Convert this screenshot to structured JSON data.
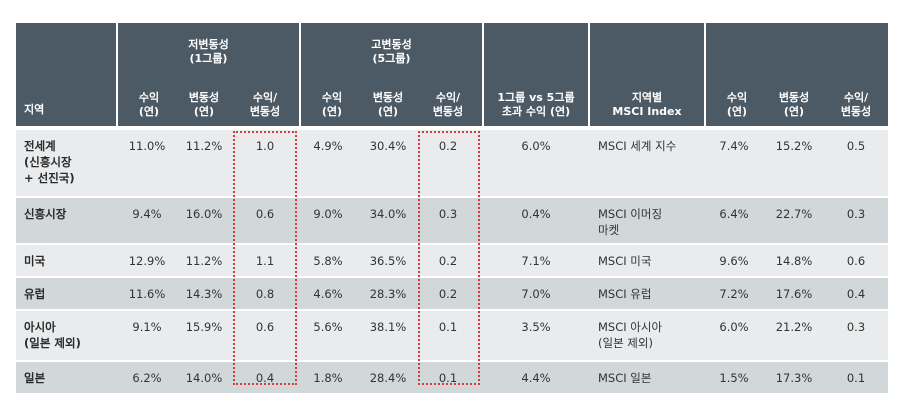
{
  "header": {
    "region": "지역",
    "low_group": "저변동성\n(1그룹)",
    "high_group": "고변동성\n(5그룹)",
    "return": "수익\n(연)",
    "volatility": "변동성\n(연)",
    "ratio": "수익/\n변동성",
    "excess": "1그룹 vs 5그룹\n초과 수익 (연)",
    "msci_region": "지역별\nMSCI Index"
  },
  "rows": [
    {
      "region": "전세계\n(신흥시장\n+ 선진국)",
      "low_ret": "11.0%",
      "low_vol": "11.2%",
      "low_ratio": "1.0",
      "high_ret": "4.9%",
      "high_vol": "30.4%",
      "high_ratio": "0.2",
      "excess": "6.0%",
      "msci": "MSCI 세계 지수",
      "m_ret": "7.4%",
      "m_vol": "15.2%",
      "m_ratio": "0.5"
    },
    {
      "region": "신흥시장",
      "low_ret": "9.4%",
      "low_vol": "16.0%",
      "low_ratio": "0.6",
      "high_ret": "9.0%",
      "high_vol": "34.0%",
      "high_ratio": "0.3",
      "excess": "0.4%",
      "msci": "MSCI 이머징\n마켓",
      "m_ret": "6.4%",
      "m_vol": "22.7%",
      "m_ratio": "0.3"
    },
    {
      "region": "미국",
      "low_ret": "12.9%",
      "low_vol": "11.2%",
      "low_ratio": "1.1",
      "high_ret": "5.8%",
      "high_vol": "36.5%",
      "high_ratio": "0.2",
      "excess": "7.1%",
      "msci": "MSCI 미국",
      "m_ret": "9.6%",
      "m_vol": "14.8%",
      "m_ratio": "0.6"
    },
    {
      "region": "유럽",
      "low_ret": "11.6%",
      "low_vol": "14.3%",
      "low_ratio": "0.8",
      "high_ret": "4.6%",
      "high_vol": "28.3%",
      "high_ratio": "0.2",
      "excess": "7.0%",
      "msci": "MSCI 유럽",
      "m_ret": "7.2%",
      "m_vol": "17.6%",
      "m_ratio": "0.4"
    },
    {
      "region": "아시아\n(일본 제외)",
      "low_ret": "9.1%",
      "low_vol": "15.9%",
      "low_ratio": "0.6",
      "high_ret": "5.6%",
      "high_vol": "38.1%",
      "high_ratio": "0.1",
      "excess": "3.5%",
      "msci": "MSCI 아시아\n(일본 제외)",
      "m_ret": "6.0%",
      "m_vol": "21.2%",
      "m_ratio": "0.3"
    },
    {
      "region": "일본",
      "low_ret": "6.2%",
      "low_vol": "14.0%",
      "low_ratio": "0.4",
      "high_ret": "1.8%",
      "high_vol": "28.4%",
      "high_ratio": "0.1",
      "excess": "4.4%",
      "msci": "MSCI 일본",
      "m_ret": "1.5%",
      "m_vol": "17.3%",
      "m_ratio": "0.1"
    }
  ]
}
